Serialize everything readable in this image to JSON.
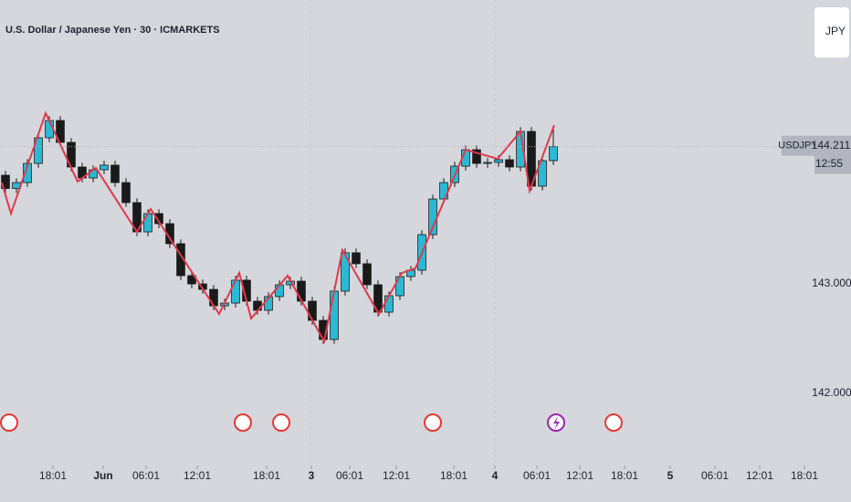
{
  "chart_data": {
    "type": "candlestick",
    "title": "U.S. Dollar / Japanese Yen · 30 · ICMARKETS",
    "symbol": "USDJPY",
    "last_price": 144.211,
    "last_price_label": "144.211",
    "countdown": "12:55",
    "up_color": "#2bb8d4",
    "down_color": "#1a1a1a",
    "x": [
      1.5,
      4.5,
      7.5,
      10.5,
      13.5,
      16.5,
      19.5,
      22.5,
      25.5,
      28.5,
      31.5,
      34.5,
      37.5,
      40.5,
      43.5,
      46.5,
      49.5,
      52.5,
      55.5,
      58.5,
      61.5,
      64.5,
      67.5,
      70.5,
      73.5,
      76.5,
      79.5,
      82.5,
      85.5,
      88.5,
      91.5,
      94.5,
      97.5,
      100.5,
      103.5,
      106.5,
      109.5,
      112.5,
      115.5,
      118.5,
      121.5,
      124.5,
      127.5,
      130.5,
      133.5,
      136.5,
      139.5,
      142.5,
      145.5,
      148.5,
      151.5
    ],
    "open": [
      143.95,
      143.829,
      143.883,
      144.058,
      144.292,
      144.45,
      144.25,
      144.025,
      143.925,
      144.0,
      144.042,
      143.883,
      143.7,
      143.433,
      143.6,
      143.508,
      143.325,
      143.033,
      142.958,
      142.908,
      142.758,
      142.783,
      142.992,
      142.8,
      142.717,
      142.842,
      142.95,
      142.983,
      142.8,
      142.625,
      142.45,
      142.892,
      143.242,
      143.142,
      142.95,
      142.7,
      142.85,
      143.025,
      143.083,
      143.408,
      143.733,
      143.883,
      144.033,
      144.183,
      144.058,
      144.067,
      144.092,
      144.025,
      144.35,
      143.85,
      144.083
    ],
    "high": [
      143.99,
      143.923,
      144.098,
      144.332,
      144.49,
      144.49,
      144.29,
      144.065,
      144.04,
      144.082,
      144.082,
      143.923,
      143.74,
      143.64,
      143.64,
      143.548,
      143.365,
      143.073,
      142.998,
      142.948,
      142.823,
      143.032,
      143.032,
      142.84,
      142.882,
      142.99,
      143.023,
      143.023,
      142.84,
      142.665,
      142.932,
      143.282,
      143.282,
      143.182,
      142.99,
      142.89,
      143.065,
      143.123,
      143.448,
      143.773,
      143.923,
      144.073,
      144.223,
      144.223,
      144.107,
      144.132,
      144.132,
      144.39,
      144.39,
      144.123,
      144.39
    ],
    "low": [
      143.789,
      143.789,
      143.843,
      144.018,
      144.252,
      144.21,
      143.985,
      143.885,
      143.885,
      143.96,
      143.843,
      143.66,
      143.393,
      143.393,
      143.468,
      143.285,
      142.993,
      142.918,
      142.868,
      142.718,
      142.718,
      142.743,
      142.76,
      142.677,
      142.677,
      142.802,
      142.91,
      142.76,
      142.585,
      142.41,
      142.41,
      142.852,
      143.102,
      142.91,
      142.66,
      142.66,
      142.81,
      142.985,
      143.043,
      143.368,
      143.693,
      143.843,
      143.993,
      144.018,
      144.018,
      144.027,
      143.985,
      143.985,
      143.81,
      143.81,
      144.043
    ],
    "close": [
      143.829,
      143.883,
      144.058,
      144.292,
      144.45,
      144.25,
      144.025,
      143.925,
      144.0,
      144.042,
      143.883,
      143.7,
      143.433,
      143.6,
      143.508,
      143.325,
      143.033,
      142.958,
      142.908,
      142.758,
      142.783,
      142.992,
      142.8,
      142.717,
      142.842,
      142.95,
      142.983,
      142.8,
      142.625,
      142.45,
      142.892,
      143.242,
      143.142,
      142.95,
      142.7,
      142.85,
      143.025,
      143.083,
      143.408,
      143.733,
      143.883,
      144.033,
      144.183,
      144.058,
      144.067,
      144.092,
      144.025,
      144.35,
      143.85,
      144.083,
      144.211
    ],
    "zigzag": {
      "color": "#e0394a",
      "x": [
        0.5,
        3,
        12.5,
        21.25,
        26.25,
        37.5,
        41.25,
        60,
        65.5,
        68.75,
        78.75,
        88.75,
        93.75,
        103.75,
        110,
        113.75,
        127.5,
        136.25,
        142.5,
        145,
        151.75
      ],
      "values": [
        143.883,
        143.6,
        144.517,
        143.892,
        144.017,
        143.433,
        143.642,
        142.683,
        143.058,
        142.642,
        143.033,
        142.433,
        143.267,
        142.683,
        143.058,
        143.1,
        144.183,
        144.1,
        144.35,
        143.808,
        144.408
      ]
    },
    "xlim": [
      0,
      222.5
    ],
    "ylim": [
      141.3,
      145.55
    ],
    "xticks": [
      {
        "value": 14.5,
        "label": "18:01"
      },
      {
        "value": 28.25,
        "label": "Jun"
      },
      {
        "value": 40,
        "label": "06:01"
      },
      {
        "value": 54,
        "label": "12:01"
      },
      {
        "value": 73,
        "label": "18:01"
      },
      {
        "value": 85.25,
        "label": "3"
      },
      {
        "value": 95.75,
        "label": "06:01"
      },
      {
        "value": 108.5,
        "label": "12:01"
      },
      {
        "value": 124.25,
        "label": "18:01"
      },
      {
        "value": 135.5,
        "label": "4"
      },
      {
        "value": 147,
        "label": "06:01"
      },
      {
        "value": 158.75,
        "label": "12:01"
      },
      {
        "value": 171,
        "label": "18:01"
      },
      {
        "value": 183.5,
        "label": "5"
      },
      {
        "value": 195.75,
        "label": "06:01"
      },
      {
        "value": 208,
        "label": "12:01"
      },
      {
        "value": 220.25,
        "label": "18:01"
      }
    ],
    "yticks": [
      {
        "value": 142,
        "label": "142.000"
      },
      {
        "value": 143,
        "label": "143.000"
      }
    ]
  },
  "toolbar": {
    "currency": "JPY"
  }
}
